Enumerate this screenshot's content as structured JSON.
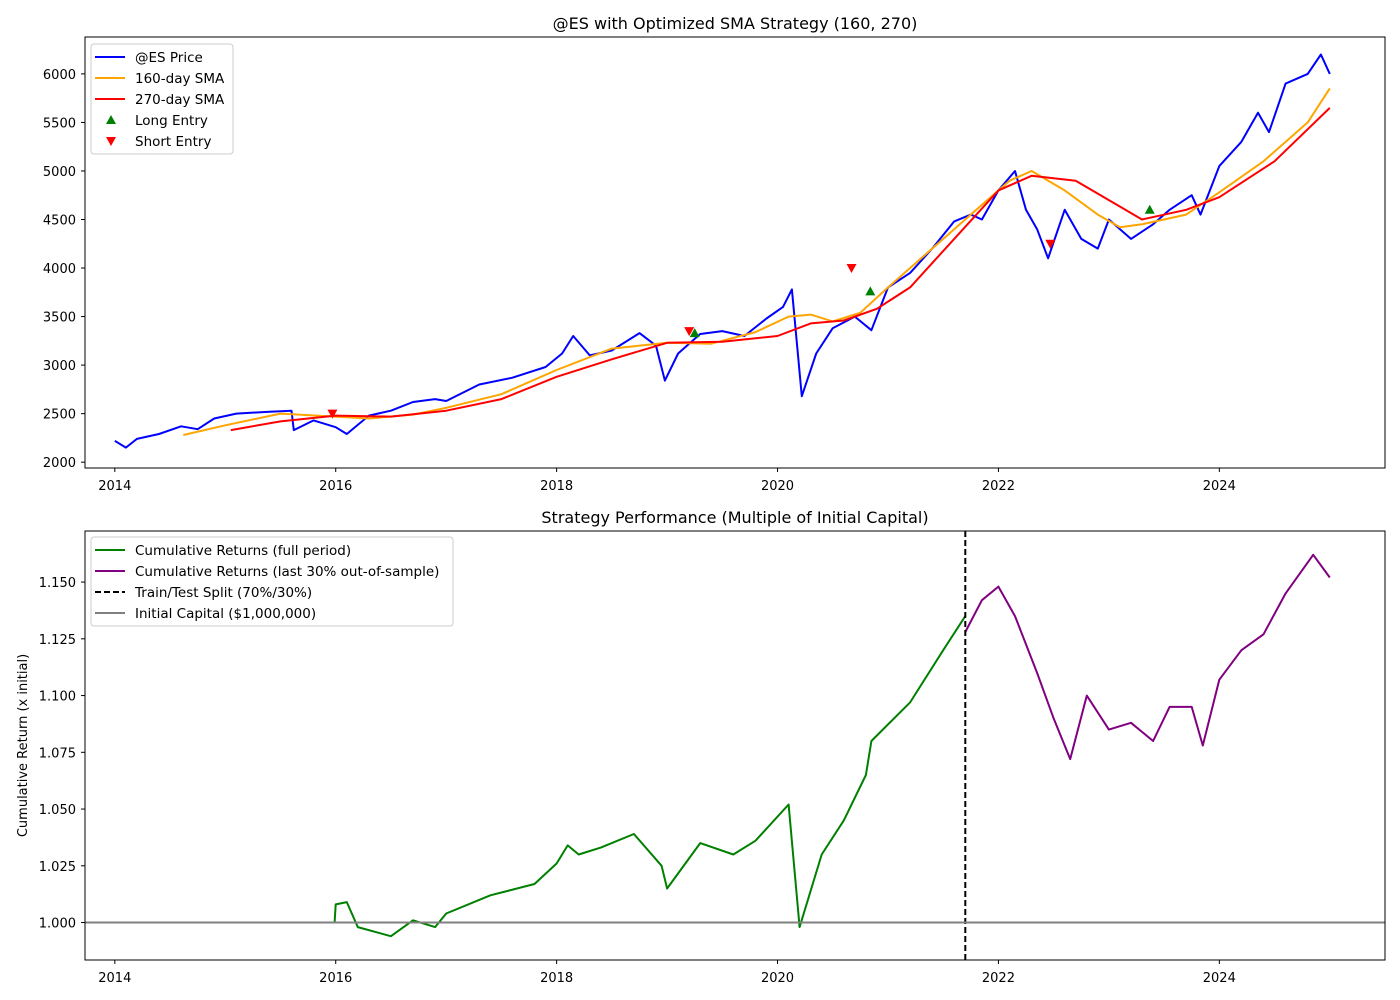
{
  "chart_data": [
    {
      "type": "line",
      "title": "@ES with Optimized SMA Strategy (160, 270)",
      "xlabel": "",
      "ylabel": "",
      "xlim": [
        2013.73,
        2025.5
      ],
      "ylim": [
        1940,
        6380
      ],
      "x_ticks": [
        2014,
        2016,
        2018,
        2020,
        2022,
        2024
      ],
      "x_tick_labels": [
        "2014",
        "2016",
        "2018",
        "2020",
        "2022",
        "2024"
      ],
      "y_ticks": [
        2000,
        2500,
        3000,
        3500,
        4000,
        4500,
        5000,
        5500,
        6000
      ],
      "y_tick_labels": [
        "2000",
        "2500",
        "3000",
        "3500",
        "4000",
        "4500",
        "5000",
        "5500",
        "6000"
      ],
      "grid": false,
      "legend_position": "upper-left",
      "series": [
        {
          "name": "@ES Price",
          "color": "#0000ff",
          "x": [
            2014.0,
            2014.1,
            2014.2,
            2014.4,
            2014.6,
            2014.75,
            2014.9,
            2015.1,
            2015.4,
            2015.6,
            2015.62,
            2015.8,
            2016.0,
            2016.1,
            2016.3,
            2016.5,
            2016.7,
            2016.9,
            2017.0,
            2017.3,
            2017.6,
            2017.9,
            2018.05,
            2018.15,
            2018.3,
            2018.5,
            2018.75,
            2018.9,
            2018.98,
            2019.1,
            2019.3,
            2019.5,
            2019.7,
            2019.9,
            2020.05,
            2020.13,
            2020.22,
            2020.35,
            2020.5,
            2020.7,
            2020.85,
            2021.0,
            2021.2,
            2021.4,
            2021.6,
            2021.75,
            2021.85,
            2022.0,
            2022.15,
            2022.25,
            2022.35,
            2022.45,
            2022.6,
            2022.75,
            2022.9,
            2023.0,
            2023.2,
            2023.4,
            2023.55,
            2023.75,
            2023.83,
            2024.0,
            2024.2,
            2024.35,
            2024.45,
            2024.6,
            2024.8,
            2024.92,
            2025.0
          ],
          "y": [
            2220,
            2150,
            2240,
            2290,
            2370,
            2340,
            2450,
            2500,
            2520,
            2530,
            2330,
            2430,
            2360,
            2290,
            2480,
            2530,
            2620,
            2650,
            2630,
            2800,
            2870,
            2980,
            3120,
            3300,
            3100,
            3150,
            3330,
            3200,
            2840,
            3120,
            3320,
            3350,
            3300,
            3480,
            3600,
            3780,
            2680,
            3120,
            3380,
            3500,
            3360,
            3800,
            3950,
            4200,
            4480,
            4550,
            4500,
            4800,
            5000,
            4600,
            4400,
            4100,
            4600,
            4300,
            4200,
            4500,
            4300,
            4450,
            4600,
            4750,
            4550,
            5050,
            5300,
            5600,
            5400,
            5900,
            6000,
            6200,
            6000
          ]
        },
        {
          "name": "160-day SMA",
          "color": "#ffa500",
          "x": [
            2014.62,
            2015.0,
            2015.5,
            2016.0,
            2016.3,
            2016.7,
            2017.0,
            2017.5,
            2018.0,
            2018.5,
            2019.0,
            2019.4,
            2019.8,
            2020.1,
            2020.3,
            2020.5,
            2020.75,
            2021.0,
            2021.4,
            2021.8,
            2022.1,
            2022.3,
            2022.6,
            2022.9,
            2023.1,
            2023.3,
            2023.7,
            2024.0,
            2024.4,
            2024.8,
            2025.0
          ],
          "y": [
            2280,
            2380,
            2500,
            2470,
            2450,
            2490,
            2560,
            2700,
            2950,
            3170,
            3230,
            3220,
            3340,
            3500,
            3520,
            3450,
            3540,
            3800,
            4200,
            4600,
            4900,
            5000,
            4800,
            4550,
            4420,
            4450,
            4550,
            4780,
            5100,
            5500,
            5850
          ]
        },
        {
          "name": "270-day SMA",
          "color": "#ff0000",
          "x": [
            2015.05,
            2015.5,
            2016.0,
            2016.5,
            2017.0,
            2017.5,
            2018.0,
            2018.5,
            2019.0,
            2019.5,
            2020.0,
            2020.3,
            2020.6,
            2020.9,
            2021.2,
            2021.6,
            2022.0,
            2022.3,
            2022.7,
            2023.0,
            2023.3,
            2023.7,
            2024.0,
            2024.5,
            2025.0
          ],
          "y": [
            2330,
            2420,
            2480,
            2470,
            2530,
            2650,
            2880,
            3060,
            3230,
            3240,
            3300,
            3430,
            3460,
            3580,
            3800,
            4300,
            4800,
            4950,
            4900,
            4700,
            4500,
            4600,
            4730,
            5100,
            5650
          ]
        },
        {
          "name": "Long Entry",
          "color": "#008000",
          "marker": "triangle-up",
          "x": [
            2019.25,
            2020.84,
            2023.37
          ],
          "y": [
            3330,
            3760,
            4600
          ]
        },
        {
          "name": "Short Entry",
          "color": "#ff0000",
          "marker": "triangle-down",
          "x": [
            2015.97,
            2019.2,
            2020.67,
            2022.47
          ],
          "y": [
            2500,
            3350,
            4000,
            4250
          ]
        }
      ]
    },
    {
      "type": "line",
      "title": "Strategy Performance (Multiple of Initial Capital)",
      "xlabel": "",
      "ylabel": "Cumulative Return (x initial)",
      "xlim": [
        2013.73,
        2025.5
      ],
      "ylim": [
        0.9835,
        1.1725
      ],
      "x_ticks": [
        2014,
        2016,
        2018,
        2020,
        2022,
        2024
      ],
      "x_tick_labels": [
        "2014",
        "2016",
        "2018",
        "2020",
        "2022",
        "2024"
      ],
      "y_ticks": [
        1.0,
        1.025,
        1.05,
        1.075,
        1.1,
        1.125,
        1.15
      ],
      "y_tick_labels": [
        "1.000",
        "1.025",
        "1.050",
        "1.075",
        "1.100",
        "1.125",
        "1.150"
      ],
      "grid": false,
      "legend_position": "upper-left",
      "series": [
        {
          "name": "Cumulative Returns (full period)",
          "color": "#008000",
          "x": [
            2014.0,
            2015.99,
            2016.0,
            2016.1,
            2016.2,
            2016.5,
            2016.7,
            2016.9,
            2017.0,
            2017.4,
            2017.8,
            2018.0,
            2018.1,
            2018.2,
            2018.4,
            2018.7,
            2018.95,
            2019.0,
            2019.3,
            2019.6,
            2019.8,
            2020.1,
            2020.2,
            2020.4,
            2020.6,
            2020.8,
            2020.85,
            2021.2,
            2021.5,
            2021.7
          ],
          "y": [
            1.0,
            1.0,
            1.008,
            1.009,
            0.998,
            0.994,
            1.001,
            0.998,
            1.004,
            1.012,
            1.017,
            1.026,
            1.034,
            1.03,
            1.033,
            1.039,
            1.025,
            1.015,
            1.035,
            1.03,
            1.036,
            1.052,
            0.998,
            1.03,
            1.045,
            1.065,
            1.08,
            1.097,
            1.12,
            1.135
          ]
        },
        {
          "name": "Cumulative Returns (last 30% out-of-sample)",
          "color": "#800080",
          "x": [
            2021.7,
            2021.85,
            2022.0,
            2022.15,
            2022.35,
            2022.5,
            2022.65,
            2022.8,
            2023.0,
            2023.2,
            2023.4,
            2023.55,
            2023.75,
            2023.85,
            2024.0,
            2024.2,
            2024.4,
            2024.6,
            2024.85,
            2025.0
          ],
          "y": [
            1.128,
            1.142,
            1.148,
            1.135,
            1.11,
            1.09,
            1.072,
            1.1,
            1.085,
            1.088,
            1.08,
            1.095,
            1.095,
            1.078,
            1.107,
            1.12,
            1.127,
            1.145,
            1.162,
            1.152
          ]
        },
        {
          "name": "Train/Test Split (70%/30%)",
          "color": "#000000",
          "style": "dashed",
          "x": [
            2021.7,
            2021.7
          ],
          "y": [
            0.9835,
            1.1725
          ]
        },
        {
          "name": "Initial Capital ($1,000,000)",
          "color": "#808080",
          "x": [
            2013.73,
            2025.5
          ],
          "y": [
            1.0,
            1.0
          ]
        }
      ]
    }
  ]
}
